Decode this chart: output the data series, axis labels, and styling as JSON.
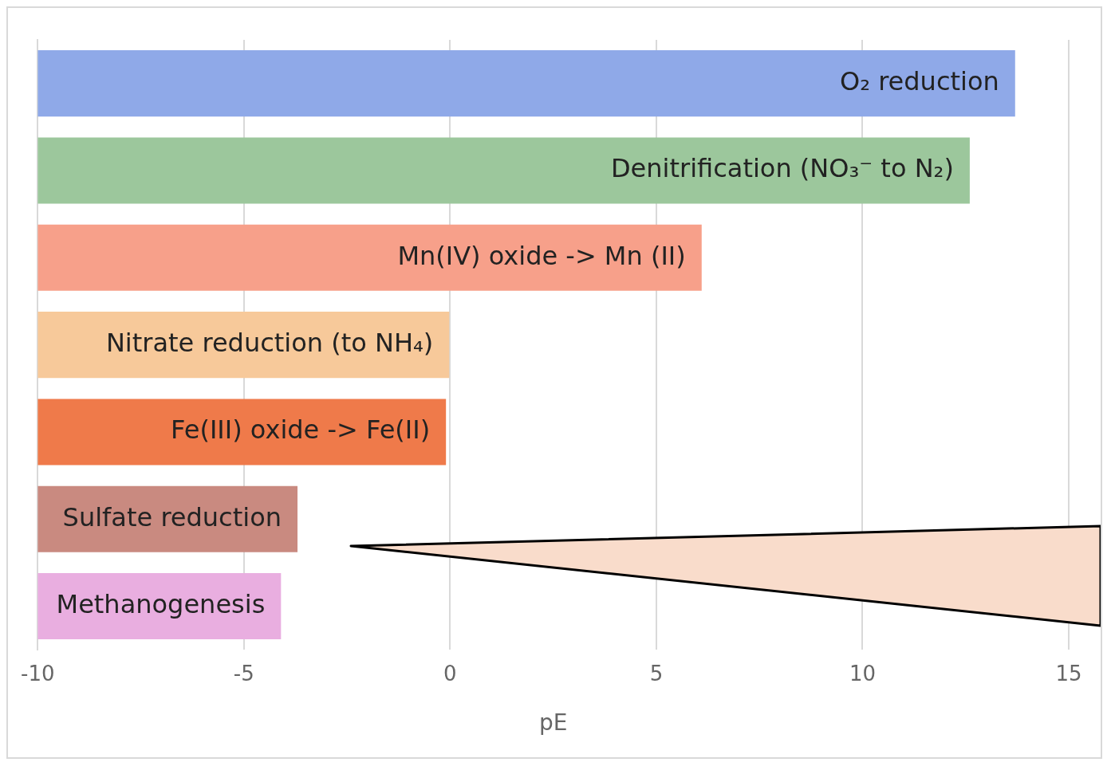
{
  "chart_data": {
    "type": "bar",
    "orientation": "horizontal",
    "xlabel": "pE",
    "categories": [
      "O₂ reduction",
      "Denitrification (NO₃⁻ to N₂)",
      "Mn(IV) oxide -> Mn (II)",
      "Nitrate reduction (to NH₄)",
      "Fe(III) oxide -> Fe(II)",
      "Sulfate reduction",
      "Methanogenesis"
    ],
    "base": [
      -10,
      -10,
      -10,
      -10,
      -10,
      -10,
      -10
    ],
    "values": [
      23.7,
      22.6,
      16.1,
      10.0,
      9.9,
      6.3,
      5.9
    ],
    "colors": [
      "#8fa9e8",
      "#9cc79c",
      "#f7a08a",
      "#f7c99a",
      "#ef7a4a",
      "#c98a80",
      "#e9aee0"
    ],
    "xlim": [
      -10,
      15
    ],
    "xticks": [
      -10,
      -5,
      0,
      5,
      10,
      15
    ],
    "grid": "x",
    "tick_labels": "x",
    "legend": false
  }
}
